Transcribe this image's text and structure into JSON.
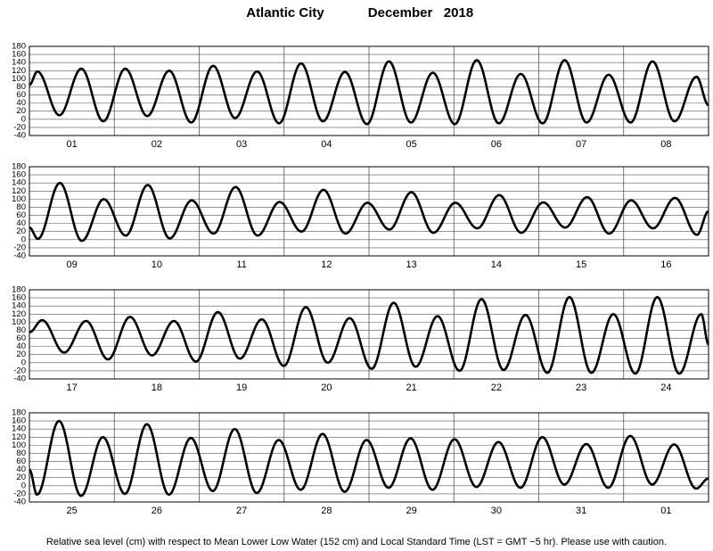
{
  "title": "Atlantic City",
  "subtitle": "December   2018",
  "footnote": "Relative sea level (cm) with respect to Mean Lower Low Water (152 cm) and Local Standard Time (LST = GMT −5 hr). Please use with caution.",
  "chart_data": [
    {
      "type": "line",
      "categories": [
        "01",
        "02",
        "03",
        "04",
        "05",
        "06",
        "07",
        "08"
      ],
      "xlim": [
        0,
        8
      ],
      "xticks": [
        0,
        1,
        2,
        3,
        4,
        5,
        6,
        7,
        8
      ],
      "ylim": [
        -40,
        180
      ],
      "yticks": [
        -40,
        -20,
        0,
        20,
        40,
        60,
        80,
        100,
        120,
        140,
        160,
        180
      ],
      "grid": true,
      "series": [
        {
          "color": "#000000",
          "x": [
            0,
            0.094,
            0.353,
            0.612,
            0.87,
            1.129,
            1.388,
            1.647,
            1.906,
            2.164,
            2.423,
            2.682,
            2.941,
            3.2,
            3.458,
            3.717,
            3.976,
            4.235,
            4.494,
            4.752,
            5.011,
            5.27,
            5.529,
            5.788,
            6.046,
            6.305,
            6.564,
            6.823,
            7.082,
            7.34,
            7.599,
            7.858,
            8
          ],
          "values": [
            85,
            118,
            10,
            125,
            -5,
            125,
            8,
            120,
            -8,
            132,
            3,
            118,
            -10,
            138,
            -5,
            117,
            -12,
            143,
            -8,
            115,
            -12,
            146,
            -10,
            112,
            -10,
            146,
            -8,
            110,
            -8,
            143,
            -5,
            105,
            35
          ]
        }
      ]
    },
    {
      "type": "line",
      "categories": [
        "09",
        "10",
        "11",
        "12",
        "13",
        "14",
        "15",
        "16"
      ],
      "xlim": [
        0,
        8
      ],
      "xticks": [
        0,
        1,
        2,
        3,
        4,
        5,
        6,
        7,
        8
      ],
      "ylim": [
        -40,
        180
      ],
      "yticks": [
        -40,
        -20,
        0,
        20,
        40,
        60,
        80,
        100,
        120,
        140,
        160,
        180
      ],
      "grid": true,
      "series": [
        {
          "color": "#000000",
          "x": [
            0,
            0.1,
            0.359,
            0.618,
            0.876,
            1.135,
            1.394,
            1.653,
            1.912,
            2.17,
            2.429,
            2.688,
            2.947,
            3.206,
            3.464,
            3.723,
            3.982,
            4.241,
            4.5,
            4.758,
            5.017,
            5.276,
            5.535,
            5.794,
            6.052,
            6.311,
            6.57,
            6.829,
            7.088,
            7.346,
            7.605,
            7.864,
            8
          ],
          "values": [
            30,
            2,
            140,
            -3,
            100,
            10,
            135,
            3,
            97,
            15,
            130,
            10,
            93,
            20,
            123,
            15,
            91,
            25,
            117,
            17,
            91,
            28,
            110,
            17,
            92,
            30,
            105,
            15,
            97,
            28,
            103,
            12,
            70
          ]
        }
      ]
    },
    {
      "type": "line",
      "categories": [
        "17",
        "18",
        "19",
        "20",
        "21",
        "22",
        "23",
        "24"
      ],
      "xlim": [
        0,
        8
      ],
      "xticks": [
        0,
        1,
        2,
        3,
        4,
        5,
        6,
        7,
        8
      ],
      "ylim": [
        -40,
        180
      ],
      "yticks": [
        -40,
        -20,
        0,
        20,
        40,
        60,
        80,
        100,
        120,
        140,
        160,
        180
      ],
      "grid": true,
      "series": [
        {
          "color": "#000000",
          "x": [
            0,
            0.15,
            0.409,
            0.668,
            0.926,
            1.185,
            1.444,
            1.703,
            1.962,
            2.22,
            2.479,
            2.738,
            2.997,
            3.256,
            3.514,
            3.773,
            4.032,
            4.291,
            4.55,
            4.808,
            5.067,
            5.326,
            5.585,
            5.844,
            6.102,
            6.361,
            6.62,
            6.879,
            7.138,
            7.396,
            7.655,
            7.914,
            8
          ],
          "values": [
            75,
            105,
            25,
            103,
            8,
            113,
            18,
            103,
            3,
            125,
            10,
            107,
            -8,
            137,
            0,
            110,
            -15,
            148,
            -10,
            115,
            -20,
            157,
            -18,
            118,
            -25,
            162,
            -25,
            120,
            -27,
            162,
            -27,
            120,
            45
          ]
        }
      ]
    },
    {
      "type": "line",
      "categories": [
        "25",
        "26",
        "27",
        "28",
        "29",
        "30",
        "31",
        "01"
      ],
      "xlim": [
        0,
        8
      ],
      "xticks": [
        0,
        1,
        2,
        3,
        4,
        5,
        6,
        7,
        8
      ],
      "ylim": [
        -40,
        180
      ],
      "yticks": [
        -40,
        -20,
        0,
        20,
        40,
        60,
        80,
        100,
        120,
        140,
        160,
        180
      ],
      "grid": true,
      "series": [
        {
          "color": "#000000",
          "x": [
            0,
            0.09,
            0.349,
            0.608,
            0.866,
            1.125,
            1.384,
            1.643,
            1.902,
            2.16,
            2.419,
            2.678,
            2.937,
            3.196,
            3.454,
            3.713,
            3.972,
            4.231,
            4.49,
            4.748,
            5.007,
            5.266,
            5.525,
            5.784,
            6.042,
            6.301,
            6.56,
            6.819,
            7.078,
            7.336,
            7.595,
            7.854,
            8
          ],
          "values": [
            40,
            -22,
            160,
            -25,
            120,
            -20,
            152,
            -22,
            118,
            -13,
            140,
            -18,
            113,
            -10,
            128,
            -15,
            113,
            -5,
            117,
            -10,
            115,
            -3,
            108,
            -5,
            120,
            3,
            103,
            -5,
            123,
            3,
            102,
            -7,
            18
          ]
        }
      ]
    }
  ]
}
